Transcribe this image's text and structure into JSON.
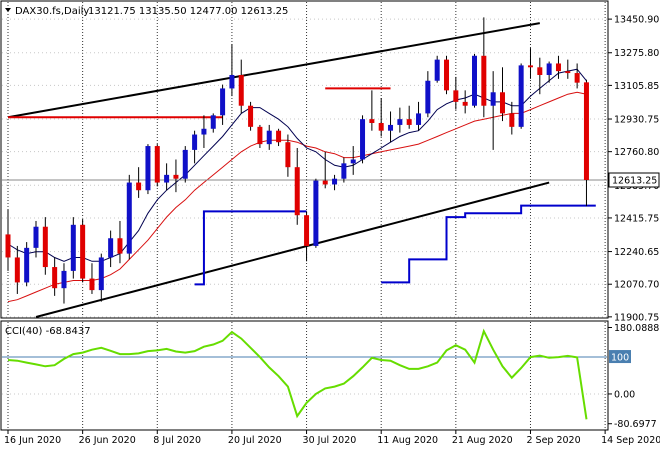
{
  "header": {
    "symbol_label": "DAX30.fs,Daily",
    "ohlc_text": "13121.75 13135.50 12477.00 12613.25"
  },
  "price_badge": "12613.25",
  "cci_label": "CCI(40) -68.8437",
  "colors": {
    "bull": "#1010c8",
    "bear": "#e00000",
    "ma_fast": "#000050",
    "ma_slow": "#d81010",
    "support_line": "#0000cc",
    "trend_line": "#000000",
    "cci_line": "#66dd00",
    "level_line": "#4a7fb0",
    "grid": "#000000",
    "price_badge_bg": "#ffffff"
  },
  "chart_data": [
    {
      "type": "candlestick",
      "ylim": [
        11900,
        13540
      ],
      "y_ticks": [
        "13450.90",
        "13275.80",
        "13105.85",
        "12930.75",
        "12760.80",
        "12585.70",
        "12415.75",
        "12240.65",
        "12070.70",
        "11900.75"
      ],
      "y_tick_values": [
        13450.9,
        13275.8,
        13105.85,
        12930.75,
        12760.8,
        12585.7,
        12415.75,
        12240.65,
        12070.7,
        11900.75
      ],
      "x_labels": [
        "16 Jun 2020",
        "26 Jun 2020",
        "8 Jul 2020",
        "20 Jul 2020",
        "30 Jul 2020",
        "11 Aug 2020",
        "21 Aug 2020",
        "2 Sep 2020",
        "14 Sep 2020"
      ],
      "x_label_bar_index": [
        0,
        8,
        16,
        24,
        32,
        40,
        48,
        56,
        64
      ],
      "grid": true,
      "candles": [
        [
          12330,
          12460,
          12140,
          12210
        ],
        [
          12210,
          12270,
          12020,
          12080
        ],
        [
          12080,
          12290,
          12060,
          12260
        ],
        [
          12260,
          12400,
          12210,
          12370
        ],
        [
          12370,
          12420,
          12120,
          12160
        ],
        [
          12160,
          12210,
          12010,
          12050
        ],
        [
          12050,
          12180,
          11970,
          12140
        ],
        [
          12140,
          12420,
          12100,
          12380
        ],
        [
          12380,
          12410,
          12080,
          12100
        ],
        [
          12100,
          12180,
          12020,
          12040
        ],
        [
          12040,
          12230,
          11980,
          12210
        ],
        [
          12210,
          12350,
          12160,
          12310
        ],
        [
          12310,
          12400,
          12180,
          12230
        ],
        [
          12230,
          12640,
          12200,
          12600
        ],
        [
          12600,
          12680,
          12520,
          12560
        ],
        [
          12560,
          12800,
          12540,
          12790
        ],
        [
          12790,
          12800,
          12580,
          12600
        ],
        [
          12600,
          12700,
          12560,
          12640
        ],
        [
          12640,
          12720,
          12550,
          12620
        ],
        [
          12620,
          12790,
          12600,
          12770
        ],
        [
          12770,
          12870,
          12700,
          12850
        ],
        [
          12850,
          12950,
          12780,
          12880
        ],
        [
          12880,
          12960,
          12860,
          12950
        ],
        [
          12950,
          13110,
          12900,
          13090
        ],
        [
          13090,
          13320,
          13050,
          13160
        ],
        [
          13160,
          13240,
          12960,
          13000
        ],
        [
          13000,
          13020,
          12870,
          12890
        ],
        [
          12890,
          12900,
          12780,
          12800
        ],
        [
          12800,
          12900,
          12770,
          12870
        ],
        [
          12870,
          12880,
          12790,
          12810
        ],
        [
          12810,
          12850,
          12630,
          12680
        ],
        [
          12680,
          12780,
          12380,
          12430
        ],
        [
          12430,
          12450,
          12190,
          12270
        ],
        [
          12270,
          12620,
          12260,
          12610
        ],
        [
          12610,
          12760,
          12570,
          12590
        ],
        [
          12590,
          12640,
          12560,
          12620
        ],
        [
          12620,
          12730,
          12600,
          12700
        ],
        [
          12700,
          12790,
          12640,
          12720
        ],
        [
          12720,
          12950,
          12700,
          12930
        ],
        [
          12930,
          13080,
          12870,
          12910
        ],
        [
          12910,
          13040,
          12840,
          12870
        ],
        [
          12870,
          12970,
          12810,
          12900
        ],
        [
          12900,
          12990,
          12860,
          12930
        ],
        [
          12930,
          13000,
          12880,
          12900
        ],
        [
          12900,
          13020,
          12870,
          12960
        ],
        [
          12960,
          13180,
          12940,
          13130
        ],
        [
          13130,
          13260,
          13120,
          13240
        ],
        [
          13240,
          13260,
          13060,
          13080
        ],
        [
          13080,
          13150,
          12980,
          13020
        ],
        [
          13020,
          13080,
          12960,
          13000
        ],
        [
          13000,
          13270,
          12990,
          13260
        ],
        [
          13260,
          13460,
          12940,
          13000
        ],
        [
          13000,
          13180,
          12770,
          13070
        ],
        [
          13070,
          13200,
          12920,
          12960
        ],
        [
          12960,
          13020,
          12850,
          12890
        ],
        [
          12890,
          13220,
          12880,
          13210
        ],
        [
          13210,
          13300,
          13140,
          13200
        ],
        [
          13200,
          13250,
          13060,
          13160
        ],
        [
          13160,
          13230,
          13120,
          13220
        ],
        [
          13220,
          13260,
          13140,
          13180
        ],
        [
          13180,
          13240,
          13140,
          13170
        ],
        [
          13170,
          13220,
          13090,
          13120
        ],
        [
          13121.75,
          13135.5,
          12477,
          12613.25
        ]
      ],
      "ma_fast": [
        12280,
        12250,
        12230,
        12240,
        12240,
        12210,
        12190,
        12210,
        12210,
        12190,
        12190,
        12210,
        12230,
        12290,
        12350,
        12440,
        12510,
        12560,
        12600,
        12640,
        12690,
        12740,
        12790,
        12840,
        12900,
        12960,
        12990,
        12990,
        12960,
        12930,
        12890,
        12830,
        12780,
        12760,
        12720,
        12690,
        12680,
        12690,
        12720,
        12750,
        12780,
        12810,
        12840,
        12860,
        12870,
        12920,
        12980,
        13010,
        13030,
        13040,
        13060,
        13040,
        13020,
        13020,
        13000,
        13000,
        13050,
        13090,
        13130,
        13170,
        13180,
        13190,
        13130
      ],
      "ma_slow": [
        11980,
        11990,
        12010,
        12030,
        12050,
        12070,
        12080,
        12090,
        12090,
        12090,
        12100,
        12120,
        12150,
        12200,
        12250,
        12300,
        12360,
        12420,
        12470,
        12510,
        12560,
        12600,
        12640,
        12680,
        12720,
        12760,
        12790,
        12810,
        12820,
        12820,
        12820,
        12810,
        12790,
        12780,
        12760,
        12750,
        12730,
        12730,
        12740,
        12750,
        12760,
        12770,
        12780,
        12790,
        12800,
        12820,
        12840,
        12860,
        12880,
        12900,
        12920,
        12930,
        12940,
        12950,
        12960,
        12960,
        12980,
        13000,
        13020,
        13040,
        13060,
        13070,
        13060
      ],
      "support_steps": [
        {
          "from_bar": 20,
          "to_bar": 21,
          "value": 12070
        },
        {
          "from_bar": 21,
          "to_bar": 22,
          "value": 12450
        },
        {
          "from_bar": 22,
          "to_bar": 32,
          "value": 12450
        },
        {
          "from_bar": 40,
          "to_bar": 43,
          "value": 12080
        },
        {
          "from_bar": 43,
          "to_bar": 47,
          "value": 12200
        },
        {
          "from_bar": 47,
          "to_bar": 49,
          "value": 12420
        },
        {
          "from_bar": 49,
          "to_bar": 55,
          "value": 12440
        },
        {
          "from_bar": 55,
          "to_bar": 63,
          "value": 12480
        }
      ],
      "red_lines": [
        {
          "from_bar": 0,
          "to_bar": 23,
          "value": 12940
        },
        {
          "from_bar": 34,
          "to_bar": 41,
          "value": 13090
        }
      ],
      "trend_lines": [
        {
          "from_bar": 0,
          "from_value": 12940,
          "to_bar": 57,
          "to_value": 13430
        },
        {
          "from_bar": 3,
          "from_value": 11900,
          "to_bar": 58,
          "to_value": 12600
        }
      ]
    },
    {
      "type": "line",
      "name": "CCI(40)",
      "ylim": [
        -95,
        195
      ],
      "y_ticks": [
        "180.0888",
        "100",
        "0.00",
        "-80.6977"
      ],
      "y_tick_values": [
        180.0888,
        100,
        0,
        -80.6977
      ],
      "level_line": 100,
      "grid": true,
      "values": [
        92,
        90,
        85,
        80,
        75,
        78,
        95,
        108,
        112,
        120,
        125,
        117,
        108,
        108,
        110,
        116,
        118,
        122,
        115,
        112,
        116,
        128,
        134,
        144,
        168,
        150,
        125,
        100,
        72,
        48,
        20,
        -60,
        -24,
        0,
        15,
        20,
        28,
        48,
        72,
        98,
        92,
        90,
        78,
        68,
        68,
        75,
        85,
        118,
        132,
        120,
        85,
        170,
        120,
        75,
        44,
        70,
        100,
        104,
        98,
        100,
        103,
        99,
        -68.8437
      ]
    }
  ]
}
